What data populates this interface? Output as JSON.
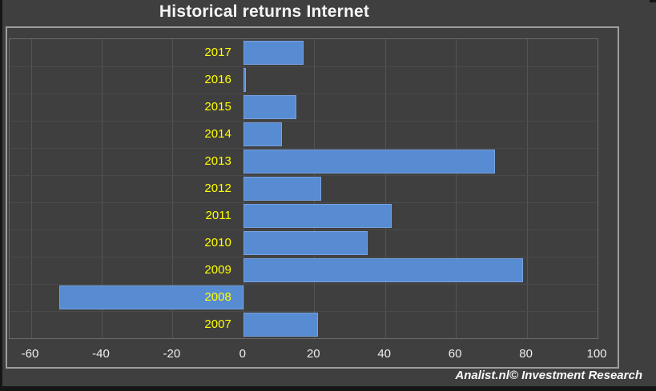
{
  "chart_data": {
    "type": "bar",
    "orientation": "horizontal",
    "title": "Historical returns Internet",
    "categories": [
      "2017",
      "2016",
      "2015",
      "2014",
      "2013",
      "2012",
      "2011",
      "2010",
      "2009",
      "2008",
      "2007"
    ],
    "values": [
      17,
      0.7,
      15,
      11,
      71,
      22,
      42,
      35,
      79,
      -52,
      21
    ],
    "x_ticks": [
      -60,
      -40,
      -20,
      0,
      20,
      40,
      60,
      80,
      100
    ],
    "xlim": [
      -66,
      100
    ],
    "grid": true,
    "legend": false
  },
  "watermark": "Analist.nl© Investment Research",
  "colors": {
    "background": "#3F3F3F",
    "bar": "#578BD2",
    "category_label": "#FFFF00",
    "tick_label": "#EFEFEF",
    "title": "#F5F5F5",
    "chart_border": "#9E9E9E",
    "gridline_vertical": "#545454",
    "gridline_horizontal": "#4A4A4A"
  }
}
